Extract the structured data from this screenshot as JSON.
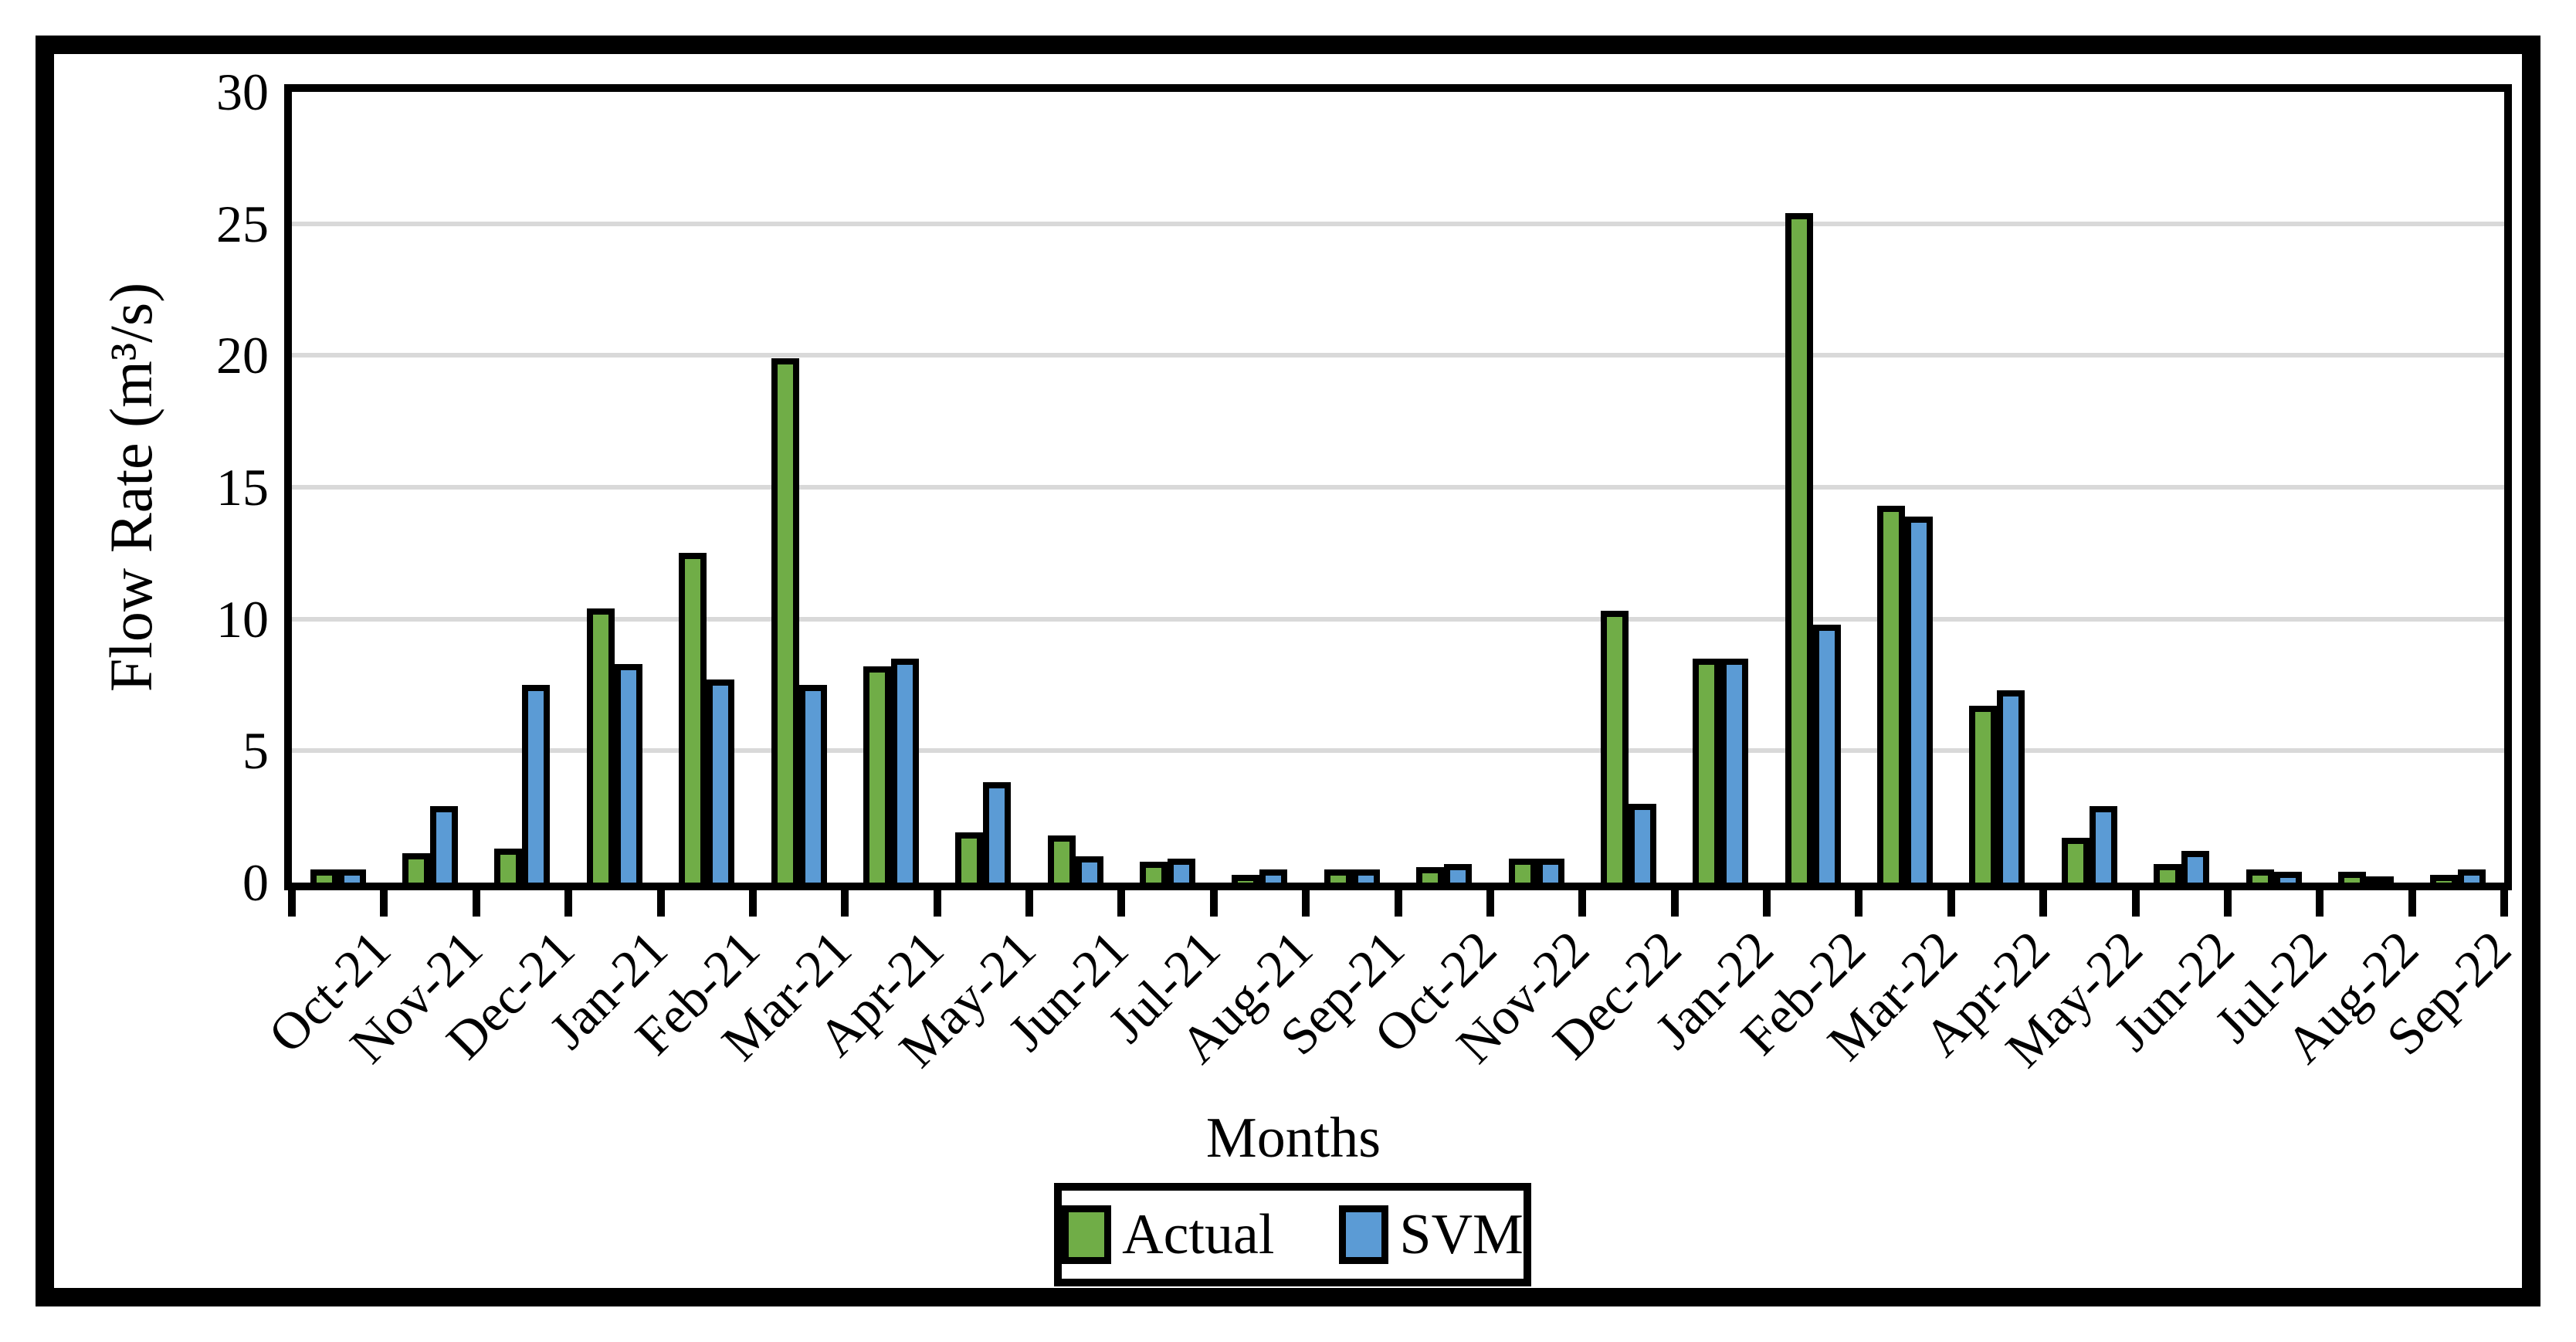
{
  "chart_data": {
    "type": "bar",
    "title": "",
    "xlabel": "Months",
    "ylabel": "Flow Rate (m³/s)",
    "ylim": [
      0,
      30
    ],
    "yticks": [
      0,
      5,
      10,
      15,
      20,
      25,
      30
    ],
    "grid": "horizontal",
    "gridline_color": "#D9D9D9",
    "bar_border_color": "#000000",
    "legend_position": "bottom-center",
    "categories": [
      "Oct-21",
      "Nov-21",
      "Dec-21",
      "Jan-21",
      "Feb-21",
      "Mar-21",
      "Apr-21",
      "May-21",
      "Jun-21",
      "Jul-21",
      "Aug-21",
      "Sep-21",
      "Oct-22",
      "Nov-22",
      "Dec-22",
      "Jan-22",
      "Feb-22",
      "Mar-22",
      "Apr-22",
      "May-22",
      "Jun-22",
      "Jul-22",
      "Aug-22",
      "Sep-22"
    ],
    "series": [
      {
        "name": "Actual",
        "color": "#70AD47",
        "values": [
          0.5,
          1.1,
          1.3,
          10.4,
          12.5,
          19.9,
          8.2,
          1.9,
          1.8,
          0.8,
          0.3,
          0.5,
          0.6,
          0.9,
          10.3,
          8.5,
          25.4,
          14.3,
          6.7,
          1.7,
          0.7,
          0.5,
          0.4,
          0.3
        ]
      },
      {
        "name": "SVM",
        "color": "#5B9BD5",
        "values": [
          0.5,
          2.9,
          7.5,
          8.3,
          7.7,
          7.5,
          8.5,
          3.8,
          1.0,
          0.9,
          0.5,
          0.5,
          0.7,
          0.9,
          3.0,
          8.5,
          9.8,
          13.9,
          7.3,
          2.9,
          1.2,
          0.4,
          0.2,
          0.5
        ]
      }
    ]
  }
}
